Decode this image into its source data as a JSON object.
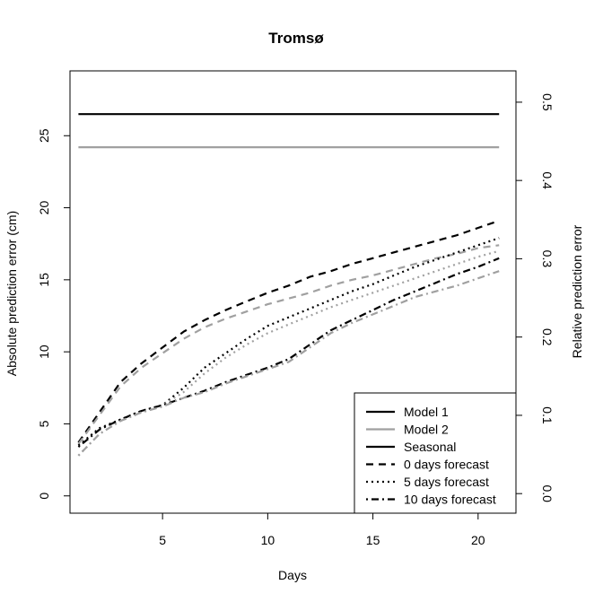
{
  "chart_data": {
    "type": "line",
    "title": "Tromsø",
    "xlabel": "Days",
    "ylabel": "Absolute prediction error (cm)",
    "y2label": "Relative prediction error",
    "xlim": [
      0.6,
      21.8
    ],
    "ylim": [
      -1.2,
      29.5
    ],
    "y2lim": [
      -0.025,
      0.54
    ],
    "x_ticks": [
      5,
      10,
      15,
      20
    ],
    "y_ticks": [
      0,
      5,
      10,
      15,
      20,
      25
    ],
    "y2_ticks": [
      0.0,
      0.1,
      0.2,
      0.3,
      0.4,
      0.5
    ],
    "x_tick_labels": [
      "5",
      "10",
      "15",
      "20"
    ],
    "y_tick_labels": [
      "0",
      "5",
      "10",
      "15",
      "20",
      "25"
    ],
    "y2_tick_labels": [
      "0.0",
      "0.1",
      "0.2",
      "0.3",
      "0.4",
      "0.5"
    ],
    "grid": false,
    "legend_position": "bottom-right",
    "legend": [
      {
        "label": "Model 1",
        "color": "#000000",
        "dash": "solid"
      },
      {
        "label": "Model 2",
        "color": "#a0a0a0",
        "dash": "solid"
      },
      {
        "label": "Seasonal",
        "color": "#000000",
        "dash": "solid"
      },
      {
        "label": "0 days forecast",
        "color": "#000000",
        "dash": "dashed"
      },
      {
        "label": "5 days forecast",
        "color": "#000000",
        "dash": "dotted"
      },
      {
        "label": "10 days forecast",
        "color": "#000000",
        "dash": "dotdash"
      }
    ],
    "x": [
      1,
      2,
      3,
      4,
      5,
      6,
      7,
      8,
      9,
      10,
      11,
      12,
      13,
      14,
      15,
      16,
      17,
      18,
      19,
      20,
      21
    ],
    "series": [
      {
        "name": "Seasonal",
        "model": "Model 1",
        "color": "#000000",
        "dash": "solid",
        "values": [
          26.5,
          26.5,
          26.5,
          26.5,
          26.5,
          26.5,
          26.5,
          26.5,
          26.5,
          26.5,
          26.5,
          26.5,
          26.5,
          26.5,
          26.5,
          26.5,
          26.5,
          26.5,
          26.5,
          26.5,
          26.5
        ]
      },
      {
        "name": "Seasonal",
        "model": "Model 2",
        "color": "#a0a0a0",
        "dash": "solid",
        "values": [
          24.2,
          24.2,
          24.2,
          24.2,
          24.2,
          24.2,
          24.2,
          24.2,
          24.2,
          24.2,
          24.2,
          24.2,
          24.2,
          24.2,
          24.2,
          24.2,
          24.2,
          24.2,
          24.2,
          24.2,
          24.2
        ]
      },
      {
        "name": "0 days forecast",
        "model": "Model 1",
        "color": "#000000",
        "dash": "dashed",
        "values": [
          3.7,
          5.8,
          7.9,
          9.2,
          10.3,
          11.4,
          12.2,
          12.9,
          13.5,
          14.1,
          14.6,
          15.2,
          15.6,
          16.1,
          16.5,
          16.9,
          17.3,
          17.7,
          18.1,
          18.6,
          19.1
        ]
      },
      {
        "name": "0 days forecast",
        "model": "Model 2",
        "color": "#a0a0a0",
        "dash": "dashed",
        "values": [
          3.6,
          5.6,
          7.6,
          8.9,
          9.9,
          10.9,
          11.7,
          12.3,
          12.8,
          13.3,
          13.7,
          14.1,
          14.6,
          15.0,
          15.3,
          15.7,
          16.1,
          16.5,
          16.8,
          17.2,
          17.4
        ]
      },
      {
        "name": "5 days forecast",
        "model": "Model 1",
        "color": "#000000",
        "dash": "dotted",
        "values": [
          3.5,
          4.7,
          5.3,
          5.9,
          6.3,
          7.5,
          8.9,
          9.9,
          10.9,
          11.8,
          12.4,
          13.0,
          13.6,
          14.2,
          14.7,
          15.3,
          15.9,
          16.4,
          16.9,
          17.4,
          17.9
        ]
      },
      {
        "name": "5 days forecast",
        "model": "Model 2",
        "color": "#a0a0a0",
        "dash": "dotted",
        "values": [
          2.8,
          4.3,
          5.2,
          5.8,
          6.3,
          7.2,
          8.5,
          9.6,
          10.5,
          11.3,
          11.9,
          12.5,
          13.1,
          13.6,
          14.1,
          14.6,
          15.1,
          15.6,
          16.1,
          16.6,
          17.0
        ]
      },
      {
        "name": "10 days forecast",
        "model": "Model 1",
        "color": "#000000",
        "dash": "dotdash",
        "values": [
          3.4,
          4.6,
          5.3,
          5.9,
          6.3,
          6.8,
          7.3,
          7.9,
          8.4,
          8.9,
          9.5,
          10.5,
          11.5,
          12.2,
          12.9,
          13.6,
          14.2,
          14.8,
          15.4,
          15.9,
          16.5
        ]
      },
      {
        "name": "10 days forecast",
        "model": "Model 2",
        "color": "#a0a0a0",
        "dash": "dotdash",
        "values": [
          2.8,
          4.3,
          5.2,
          5.8,
          6.2,
          6.8,
          7.2,
          7.8,
          8.3,
          8.8,
          9.3,
          10.3,
          11.3,
          12.0,
          12.6,
          13.2,
          13.8,
          14.2,
          14.6,
          15.1,
          15.6
        ]
      }
    ]
  }
}
